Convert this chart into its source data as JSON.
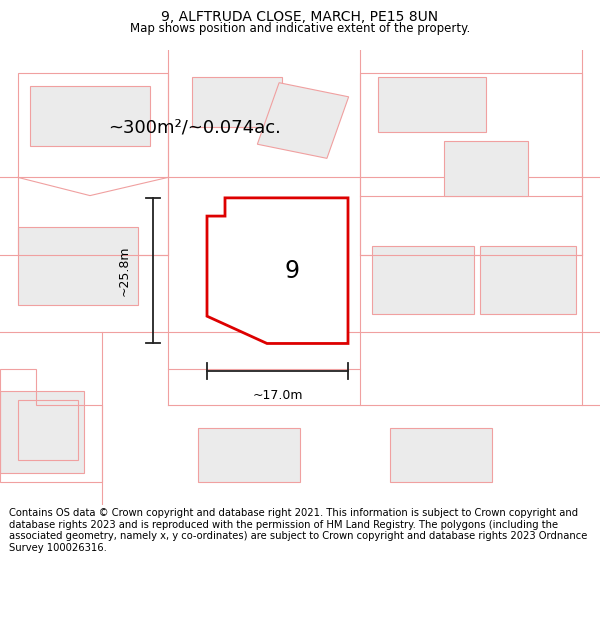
{
  "title": "9, ALFTRUDA CLOSE, MARCH, PE15 8UN",
  "subtitle": "Map shows position and indicative extent of the property.",
  "area_label": "~300m²/~0.074ac.",
  "plot_number": "9",
  "dim_width": "~17.0m",
  "dim_height": "~25.8m",
  "footer": "Contains OS data © Crown copyright and database right 2021. This information is subject to Crown copyright and database rights 2023 and is reproduced with the permission of HM Land Registry. The polygons (including the associated geometry, namely x, y co-ordinates) are subject to Crown copyright and database rights 2023 Ordnance Survey 100026316.",
  "bg_color": "#ffffff",
  "map_bg": "#fdf8f8",
  "plot_fill": "#ffffff",
  "plot_edge": "#dd0000",
  "neighbor_fill": "#ebebeb",
  "neighbor_edge": "#f0a0a0",
  "dim_color": "#222222",
  "title_fontsize": 10,
  "subtitle_fontsize": 8.5,
  "area_fontsize": 13,
  "number_fontsize": 17,
  "dim_fontsize": 9,
  "footer_fontsize": 7.2
}
